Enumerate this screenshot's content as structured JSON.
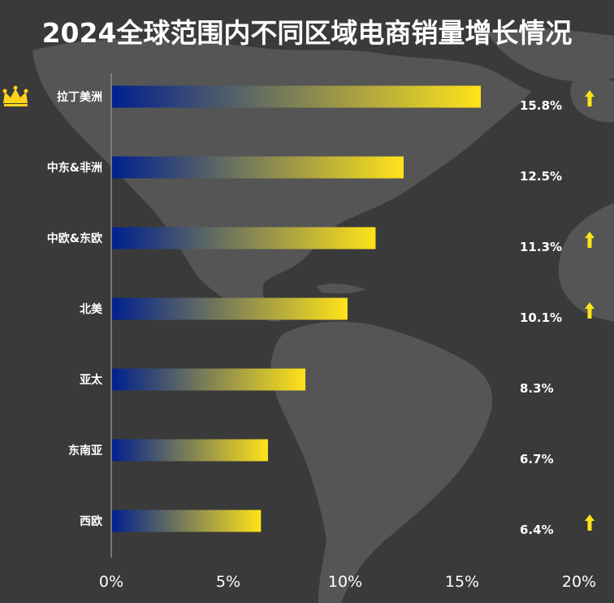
{
  "title": "2024全球范围内不同区域电商销量增长情况",
  "colors": {
    "background": "#3a3a3a",
    "map": "#555555",
    "bar_start": "#00208f",
    "bar_end": "#ffe31a",
    "arrow": "#ffe31a",
    "crown": "#ffd21a",
    "text": "#ffffff"
  },
  "icons": {
    "top_item": "crown-icon",
    "trend": "up-arrow-icon"
  },
  "chart_data": {
    "type": "bar",
    "orientation": "horizontal",
    "title": "2024全球范围内不同区域电商销量增长情况",
    "categories": [
      "拉丁美洲",
      "中东&非洲",
      "中欧&东欧",
      "北美",
      "亚太",
      "东南亚",
      "西欧"
    ],
    "values": [
      15.8,
      12.5,
      11.3,
      10.1,
      8.3,
      6.7,
      6.4
    ],
    "value_labels": [
      "15.8%",
      "12.5%",
      "11.3%",
      "10.1%",
      "8.3%",
      "6.7%",
      "6.4%"
    ],
    "up_arrow": [
      true,
      false,
      true,
      true,
      false,
      false,
      true
    ],
    "crown": [
      true,
      false,
      false,
      false,
      false,
      false,
      false
    ],
    "xlim": [
      0,
      20
    ],
    "xticks": [
      0,
      5,
      10,
      15,
      20
    ],
    "xtick_labels": [
      "0%",
      "5%",
      "10%",
      "15%",
      "20%"
    ],
    "xlabel": "",
    "ylabel": "",
    "grid": false
  }
}
